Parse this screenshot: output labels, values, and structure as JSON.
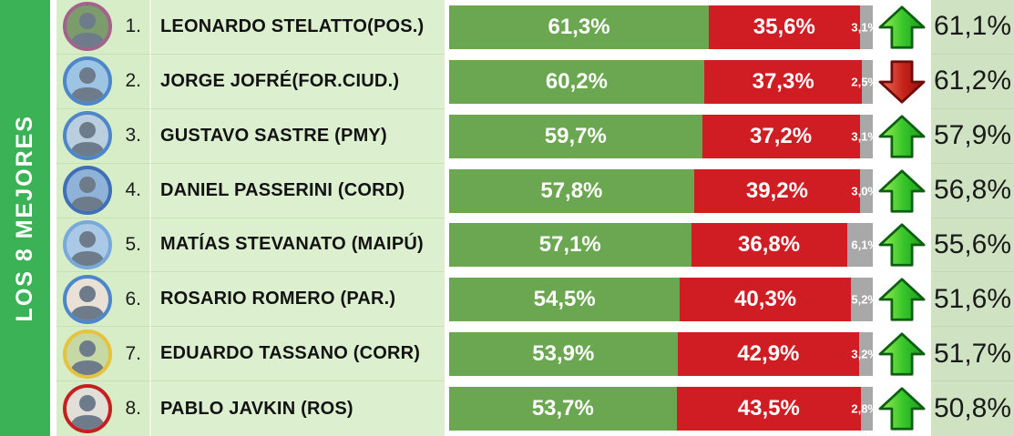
{
  "sidebar": {
    "title": "LOS 8 MEJORES"
  },
  "colors": {
    "sidebar_bg": "#3cb257",
    "row_bg": "#d7edc8",
    "name_bg": "#dcf0cf",
    "total_bg": "#cfe3c3",
    "positive_bar": "#6aa750",
    "negative_bar": "#d01d24",
    "neutral_bar": "#a8a8a8",
    "up_arrow": "#2fb224",
    "down_arrow": "#b51d12"
  },
  "rows": [
    {
      "rank": "1.",
      "name": "LEONARDO STELATTO(POS.)",
      "positive": "61,3%",
      "negative": "35,6%",
      "neutral": "3,1%",
      "pos_val": 61.3,
      "neg_val": 35.6,
      "neu_val": 3.1,
      "trend": "up",
      "total": "61,1%",
      "ring": "#a3628b",
      "photo": "#7d9c6c"
    },
    {
      "rank": "2.",
      "name": "JORGE JOFRÉ(FOR.CIUD.)",
      "positive": "60,2%",
      "negative": "37,3%",
      "neutral": "2,5%",
      "pos_val": 60.2,
      "neg_val": 37.3,
      "neu_val": 2.5,
      "trend": "down",
      "total": "61,2%",
      "ring": "#4d86c9",
      "photo": "#9cc4e4"
    },
    {
      "rank": "3.",
      "name": "GUSTAVO SASTRE (PMY)",
      "positive": "59,7%",
      "negative": "37,2%",
      "neutral": "3,1%",
      "pos_val": 59.7,
      "neg_val": 37.2,
      "neu_val": 3.1,
      "trend": "up",
      "total": "57,9%",
      "ring": "#4d86c9",
      "photo": "#b9cfdf"
    },
    {
      "rank": "4.",
      "name": "DANIEL PASSERINI (CORD)",
      "positive": "57,8%",
      "negative": "39,2%",
      "neutral": "3,0%",
      "pos_val": 57.8,
      "neg_val": 39.2,
      "neu_val": 3.0,
      "trend": "up",
      "total": "56,8%",
      "ring": "#3f6fb5",
      "photo": "#8fb2d8"
    },
    {
      "rank": "5.",
      "name": "MATÍAS STEVANATO (MAIPÚ)",
      "positive": "57,1%",
      "negative": "36,8%",
      "neutral": "6,1%",
      "pos_val": 57.1,
      "neg_val": 36.8,
      "neu_val": 6.1,
      "trend": "up",
      "total": "55,6%",
      "ring": "#79a8dd",
      "photo": "#a9c9e6"
    },
    {
      "rank": "6.",
      "name": "ROSARIO ROMERO (PAR.)",
      "positive": "54,5%",
      "negative": "40,3%",
      "neutral": "5,2%",
      "pos_val": 54.5,
      "neg_val": 40.3,
      "neu_val": 5.2,
      "trend": "up",
      "total": "51,6%",
      "ring": "#4d86c9",
      "photo": "#e9e1d6"
    },
    {
      "rank": "7.",
      "name": "EDUARDO TASSANO (CORR)",
      "positive": "53,9%",
      "negative": "42,9%",
      "neutral": "3,2%",
      "pos_val": 53.9,
      "neg_val": 42.9,
      "neu_val": 3.2,
      "trend": "up",
      "total": "51,7%",
      "ring": "#e6c33c",
      "photo": "#c6d8a4"
    },
    {
      "rank": "8.",
      "name": "PABLO JAVKIN (ROS)",
      "positive": "53,7%",
      "negative": "43,5%",
      "neutral": "2,8%",
      "pos_val": 53.7,
      "neg_val": 43.5,
      "neu_val": 2.8,
      "trend": "up",
      "total": "50,8%",
      "ring": "#c42020",
      "photo": "#e2dfd8"
    }
  ],
  "chart_data": {
    "type": "bar",
    "subtype": "horizontal-stacked-ranking",
    "title": "LOS 8 MEJORES",
    "categories": [
      "LEONARDO STELATTO(POS.)",
      "JORGE JOFRÉ(FOR.CIUD.)",
      "GUSTAVO SASTRE (PMY)",
      "DANIEL PASSERINI (CORD)",
      "MATÍAS STEVANATO (MAIPÚ)",
      "ROSARIO ROMERO (PAR.)",
      "EDUARDO TASSANO (CORR)",
      "PABLO JAVKIN (ROS)"
    ],
    "series": [
      {
        "name": "positive (green)",
        "values": [
          61.3,
          60.2,
          59.7,
          57.8,
          57.1,
          54.5,
          53.9,
          53.7
        ]
      },
      {
        "name": "negative (red)",
        "values": [
          35.6,
          37.3,
          37.2,
          39.2,
          36.8,
          40.3,
          42.9,
          43.5
        ]
      },
      {
        "name": "neutral (gray)",
        "values": [
          3.1,
          2.5,
          3.1,
          3.0,
          6.1,
          5.2,
          3.2,
          2.8
        ]
      }
    ],
    "previous_totals": [
      61.1,
      61.2,
      57.9,
      56.8,
      55.6,
      51.6,
      51.7,
      50.8
    ],
    "trend_arrows": [
      "up",
      "down",
      "up",
      "up",
      "up",
      "up",
      "up",
      "up"
    ],
    "xlim": [
      0,
      100
    ],
    "value_format": "percent, comma decimal separator",
    "legend": "none",
    "grid": false
  }
}
